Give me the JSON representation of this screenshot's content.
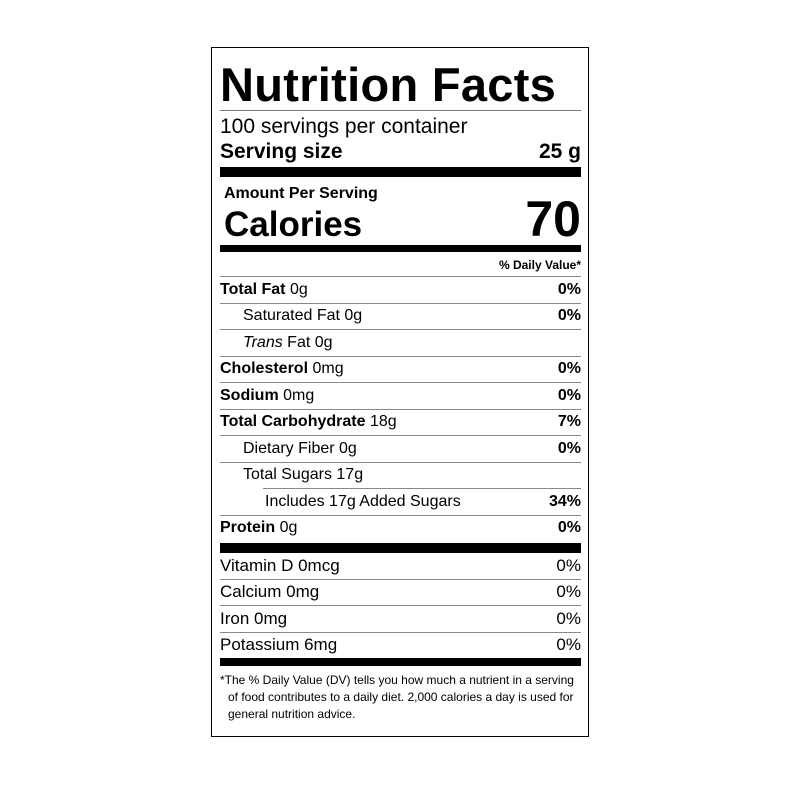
{
  "title": "Nutrition Facts",
  "servings_per_container": "100 servings per container",
  "serving_size": {
    "label": "Serving size",
    "value": "25 g"
  },
  "amount_per_serving": "Amount Per Serving",
  "calories": {
    "label": "Calories",
    "value": "70"
  },
  "daily_value_header": "% Daily Value*",
  "nutrients": [
    {
      "name": "Total Fat",
      "amount": "0g",
      "dv": "0%"
    },
    {
      "name": "Saturated Fat",
      "amount": "0g",
      "dv": "0%"
    },
    {
      "name": "Trans",
      "name_suffix": "Fat",
      "amount": "0g",
      "dv": ""
    },
    {
      "name": "Cholesterol",
      "amount": "0mg",
      "dv": "0%"
    },
    {
      "name": "Sodium",
      "amount": "0mg",
      "dv": "0%"
    },
    {
      "name": "Total Carbohydrate",
      "amount": "18g",
      "dv": "7%"
    },
    {
      "name": "Dietary Fiber",
      "amount": "0g",
      "dv": "0%"
    },
    {
      "name": "Total Sugars",
      "amount": "17g",
      "dv": ""
    },
    {
      "name": "Includes 17g Added Sugars",
      "dv": "34%"
    },
    {
      "name": "Protein",
      "amount": "0g",
      "dv": "0%"
    }
  ],
  "vitamins": [
    {
      "label": "Vitamin D 0mcg",
      "dv": "0%"
    },
    {
      "label": "Calcium 0mg",
      "dv": "0%"
    },
    {
      "label": "Iron 0mg",
      "dv": "0%"
    },
    {
      "label": "Potassium 6mg",
      "dv": "0%"
    }
  ],
  "footnote": "*The % Daily Value (DV) tells you how much a nutrient in a serving of food contributes to a daily diet. 2,000 calories a day is used for general nutrition advice."
}
